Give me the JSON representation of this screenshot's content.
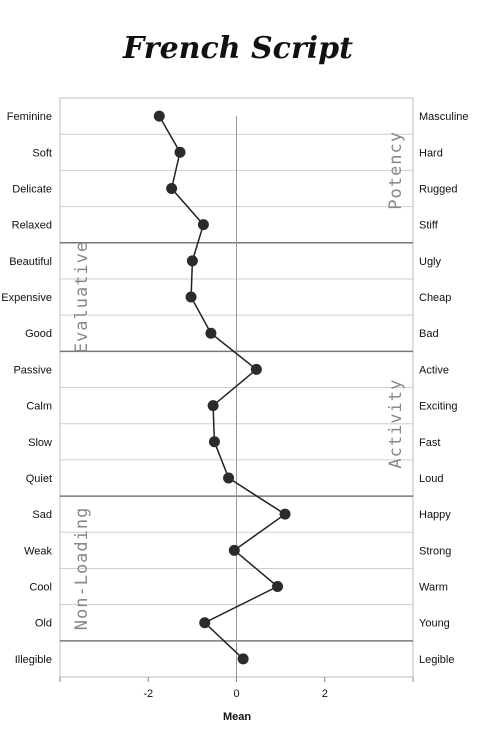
{
  "chart_data": {
    "type": "line",
    "title": "French Script",
    "xlabel": "Mean",
    "xlim": [
      -4,
      4
    ],
    "xticks": [
      -2,
      0,
      2
    ],
    "grid": true,
    "categories_left": [
      "Feminine",
      "Soft",
      "Delicate",
      "Relaxed",
      "Beautiful",
      "Expensive",
      "Good",
      "Passive",
      "Calm",
      "Slow",
      "Quiet",
      "Sad",
      "Weak",
      "Cool",
      "Old",
      "Illegible"
    ],
    "categories_right": [
      "Masculine",
      "Hard",
      "Rugged",
      "Stiff",
      "Ugly",
      "Cheap",
      "Bad",
      "Active",
      "Exciting",
      "Fast",
      "Loud",
      "Happy",
      "Strong",
      "Warm",
      "Young",
      "Legible"
    ],
    "values": [
      -1.75,
      -1.28,
      -1.47,
      -0.75,
      -1.0,
      -1.03,
      -0.58,
      0.45,
      -0.53,
      -0.5,
      -0.18,
      1.1,
      -0.05,
      0.93,
      -0.72,
      0.15
    ],
    "groups": [
      {
        "label": "Potency",
        "side": "right",
        "start": 0,
        "end": 3
      },
      {
        "label": "Evaluative",
        "side": "left",
        "start": 4,
        "end": 6
      },
      {
        "label": "Activity",
        "side": "right",
        "start": 7,
        "end": 10
      },
      {
        "label": "Non-Loading",
        "side": "left",
        "start": 11,
        "end": 14
      }
    ]
  }
}
